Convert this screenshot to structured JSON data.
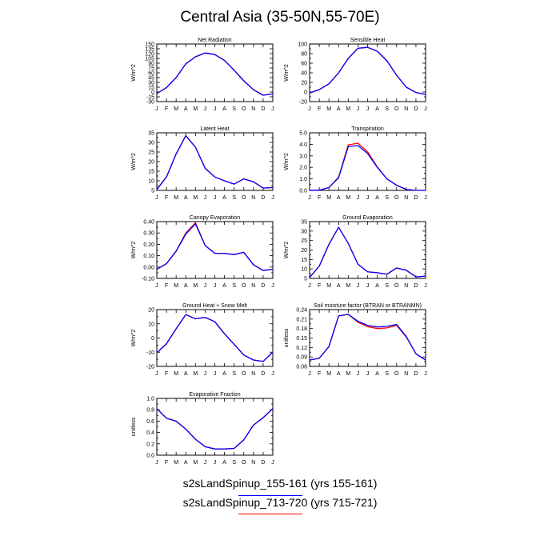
{
  "title": "Central Asia (35-50N,55-70E)",
  "colors": {
    "run1": "#0000ff",
    "run2": "#ff0000",
    "axis": "#000000"
  },
  "legend": [
    {
      "label": "s2sLandSpinup_155-161 (yrs 155-161)",
      "color": "#0000ff"
    },
    {
      "label": "s2sLandSpinup_713-720 (yrs 715-721)",
      "color": "#ff0000"
    }
  ],
  "chart_data": [
    {
      "type": "line",
      "title": "Net Radiation",
      "ylabel": "W/m^2",
      "categories": [
        "J",
        "F",
        "M",
        "A",
        "M",
        "J",
        "J",
        "A",
        "S",
        "O",
        "N",
        "D",
        "J"
      ],
      "ylim": [
        -30,
        150
      ],
      "yticks": [
        -30,
        -15,
        0,
        15,
        30,
        45,
        60,
        75,
        90,
        105,
        120,
        135,
        150
      ],
      "yticklabels": [
        "-30",
        "-15",
        "0",
        "15",
        "30",
        "45",
        "60",
        "75",
        "90",
        "105",
        "120",
        "135",
        "150"
      ],
      "series": [
        {
          "values": [
            -5,
            14,
            45,
            88,
            110,
            122,
            117,
            99,
            68,
            35,
            7,
            -10,
            -6
          ]
        },
        {
          "values": [
            -5,
            14,
            45,
            88,
            110,
            122,
            117,
            99,
            68,
            35,
            7,
            -10,
            -6
          ]
        }
      ]
    },
    {
      "type": "line",
      "title": "Sensible Heat",
      "ylabel": "W/m^2",
      "categories": [
        "J",
        "F",
        "M",
        "A",
        "M",
        "J",
        "J",
        "A",
        "S",
        "O",
        "N",
        "D",
        "J"
      ],
      "ylim": [
        -20,
        100
      ],
      "yticks": [
        -20,
        -10,
        0,
        10,
        20,
        30,
        40,
        50,
        60,
        70,
        80,
        90,
        100
      ],
      "yticklabels": [
        "-20",
        "",
        "0",
        "",
        "20",
        "",
        "40",
        "",
        "60",
        "",
        "80",
        "",
        "100"
      ],
      "series": [
        {
          "values": [
            -2,
            5,
            17,
            40,
            70,
            91,
            93,
            85,
            65,
            35,
            10,
            -1,
            -5
          ]
        },
        {
          "values": [
            -2,
            5,
            17,
            40,
            70,
            91,
            93,
            85,
            65,
            35,
            10,
            -1,
            -5
          ]
        }
      ]
    },
    {
      "type": "line",
      "title": "Latent Heat",
      "ylabel": "W/m^2",
      "categories": [
        "J",
        "F",
        "M",
        "A",
        "M",
        "J",
        "J",
        "A",
        "S",
        "O",
        "N",
        "D",
        "J"
      ],
      "ylim": [
        5,
        35
      ],
      "yticks": [
        5,
        7.5,
        10,
        12.5,
        15,
        17.5,
        20,
        22.5,
        25,
        27.5,
        30,
        32.5,
        35
      ],
      "yticklabels": [
        "5",
        "",
        "10",
        "",
        "15",
        "",
        "20",
        "",
        "25",
        "",
        "30",
        "",
        "35"
      ],
      "series": [
        {
          "values": [
            5.5,
            12,
            24,
            33.5,
            27.5,
            16.5,
            12,
            10,
            8.3,
            11,
            9.5,
            6.2,
            6.5
          ]
        },
        {
          "values": [
            5.5,
            12,
            24,
            33.5,
            27.5,
            16.5,
            12,
            10,
            8.3,
            11,
            9.5,
            6.2,
            6.5
          ]
        }
      ]
    },
    {
      "type": "line",
      "title": "Transpiration",
      "ylabel": "W/m^2",
      "categories": [
        "J",
        "F",
        "M",
        "A",
        "M",
        "J",
        "J",
        "A",
        "S",
        "O",
        "N",
        "D",
        "J"
      ],
      "ylim": [
        0,
        5
      ],
      "yticks": [
        0,
        0.5,
        1,
        1.5,
        2,
        2.5,
        3,
        3.5,
        4,
        4.5,
        5
      ],
      "yticklabels": [
        "0.0",
        "",
        "1.0",
        "",
        "2.0",
        "",
        "3.0",
        "",
        "4.0",
        "",
        "5.0"
      ],
      "series": [
        {
          "values": [
            0.0,
            0.02,
            0.25,
            1.1,
            3.8,
            3.9,
            3.2,
            2.0,
            1.0,
            0.45,
            0.08,
            0.01,
            0.0
          ]
        },
        {
          "values": [
            0.0,
            0.02,
            0.25,
            1.15,
            3.95,
            4.1,
            3.35,
            2.05,
            1.0,
            0.45,
            0.08,
            0.01,
            0.0
          ]
        }
      ]
    },
    {
      "type": "line",
      "title": "Canopy Evaporation",
      "ylabel": "W/m^2",
      "categories": [
        "J",
        "F",
        "M",
        "A",
        "M",
        "J",
        "J",
        "A",
        "S",
        "O",
        "N",
        "D",
        "J"
      ],
      "ylim": [
        -0.1,
        0.4
      ],
      "yticks": [
        -0.1,
        -0.05,
        0,
        0.05,
        0.1,
        0.15,
        0.2,
        0.25,
        0.3,
        0.35,
        0.4
      ],
      "yticklabels": [
        "-0.10",
        "",
        "0.00",
        "",
        "0.10",
        "",
        "0.20",
        "",
        "0.30",
        "",
        "0.40"
      ],
      "series": [
        {
          "values": [
            -0.02,
            0.03,
            0.14,
            0.29,
            0.38,
            0.19,
            0.12,
            0.12,
            0.11,
            0.13,
            0.02,
            -0.03,
            -0.02
          ]
        },
        {
          "values": [
            -0.02,
            0.03,
            0.14,
            0.3,
            0.39,
            0.19,
            0.12,
            0.12,
            0.11,
            0.13,
            0.02,
            -0.03,
            -0.02
          ]
        }
      ]
    },
    {
      "type": "line",
      "title": "Ground Evaporation",
      "ylabel": "W/m^2",
      "categories": [
        "J",
        "F",
        "M",
        "A",
        "M",
        "J",
        "J",
        "A",
        "S",
        "O",
        "N",
        "D",
        "J"
      ],
      "ylim": [
        5,
        35
      ],
      "yticks": [
        5,
        7.5,
        10,
        12.5,
        15,
        17.5,
        20,
        22.5,
        25,
        27.5,
        30,
        32.5,
        35
      ],
      "yticklabels": [
        "5",
        "",
        "10",
        "",
        "15",
        "",
        "20",
        "",
        "25",
        "",
        "30",
        "",
        "35"
      ],
      "series": [
        {
          "values": [
            5.5,
            11.5,
            23,
            32,
            23.5,
            12.5,
            8.5,
            8,
            7.2,
            10.5,
            9.3,
            5.8,
            6.2
          ]
        },
        {
          "values": [
            5.5,
            11.5,
            23,
            32,
            23.5,
            12.5,
            8.5,
            8,
            7.2,
            10.5,
            9.3,
            5.8,
            6.2
          ]
        }
      ]
    },
    {
      "type": "line",
      "title": "Ground Heat + Snow Melt",
      "ylabel": "W/m^2",
      "categories": [
        "J",
        "F",
        "M",
        "A",
        "M",
        "J",
        "J",
        "A",
        "S",
        "O",
        "N",
        "D",
        "J"
      ],
      "ylim": [
        -20,
        20
      ],
      "yticks": [
        -20,
        -15,
        -10,
        -5,
        0,
        5,
        10,
        15,
        20
      ],
      "yticklabels": [
        "-20",
        "",
        "-10",
        "",
        "0",
        "",
        "10",
        "",
        "20"
      ],
      "series": [
        {
          "values": [
            -10.5,
            -4,
            6.5,
            16.5,
            13.5,
            14.5,
            11.5,
            3,
            -4.5,
            -12,
            -15.5,
            -16.5,
            -10
          ]
        },
        {
          "values": [
            -10.5,
            -4,
            6.5,
            16.5,
            13.5,
            14.5,
            11.5,
            3,
            -4.5,
            -12,
            -15.5,
            -16.5,
            -10
          ]
        }
      ]
    },
    {
      "type": "line",
      "title": "Soil moisture factor (BTRAN or BTRANMN)",
      "ylabel": "unitless",
      "categories": [
        "J",
        "F",
        "M",
        "A",
        "M",
        "J",
        "J",
        "A",
        "S",
        "O",
        "N",
        "D",
        "J"
      ],
      "ylim": [
        0.06,
        0.24
      ],
      "yticks": [
        0.06,
        0.075,
        0.09,
        0.105,
        0.12,
        0.135,
        0.15,
        0.165,
        0.18,
        0.195,
        0.21,
        0.225,
        0.24
      ],
      "yticklabels": [
        "0.06",
        "",
        "0.09",
        "",
        "0.12",
        "",
        "0.15",
        "",
        "0.18",
        "",
        "0.21",
        "",
        "0.24"
      ],
      "series": [
        {
          "values": [
            0.08,
            0.086,
            0.123,
            0.22,
            0.225,
            0.203,
            0.19,
            0.185,
            0.187,
            0.193,
            0.155,
            0.1,
            0.08
          ]
        },
        {
          "values": [
            0.08,
            0.086,
            0.123,
            0.22,
            0.225,
            0.2,
            0.186,
            0.18,
            0.182,
            0.19,
            0.153,
            0.1,
            0.08
          ]
        }
      ]
    },
    {
      "type": "line",
      "title": "Evaporative Fraction",
      "ylabel": "unitless",
      "categories": [
        "J",
        "F",
        "M",
        "A",
        "M",
        "J",
        "J",
        "A",
        "S",
        "O",
        "N",
        "D",
        "J"
      ],
      "ylim": [
        0,
        1
      ],
      "yticks": [
        0,
        0.1,
        0.2,
        0.3,
        0.4,
        0.5,
        0.6,
        0.7,
        0.8,
        0.9,
        1.0
      ],
      "yticklabels": [
        "0.0",
        "",
        "0.2",
        "",
        "0.4",
        "",
        "0.6",
        "",
        "0.8",
        "",
        "1.0"
      ],
      "series": [
        {
          "values": [
            0.82,
            0.65,
            0.6,
            0.46,
            0.28,
            0.15,
            0.11,
            0.11,
            0.12,
            0.27,
            0.53,
            0.66,
            0.82
          ]
        },
        {
          "values": [
            0.82,
            0.65,
            0.6,
            0.46,
            0.28,
            0.15,
            0.11,
            0.11,
            0.12,
            0.27,
            0.53,
            0.66,
            0.82
          ]
        }
      ]
    }
  ]
}
